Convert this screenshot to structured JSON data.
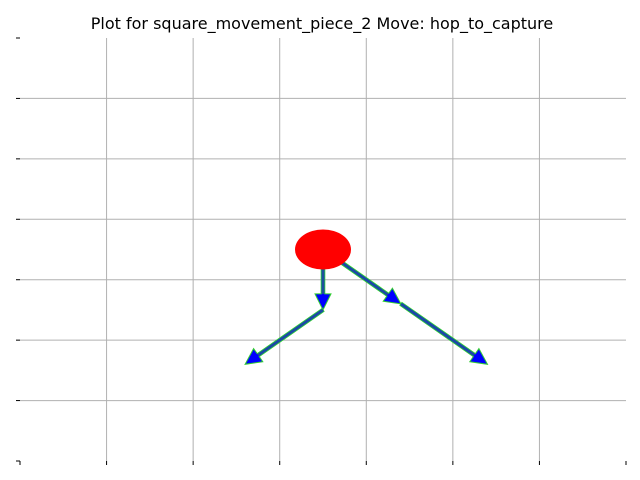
{
  "title": "Plot for  square_movement_piece_2 Move: hop_to_capture",
  "grid": true,
  "colors": {
    "grid": "#b0b0b0",
    "axes": "#000000",
    "piece": "#ff0000",
    "arrow_fill": "#0000ff",
    "arrow_edge": "#32cd32",
    "shaft": "#1f4e9e",
    "background": "#ffffff"
  },
  "chart_data": {
    "type": "scatter",
    "title": "Plot for  square_movement_piece_2 Move: hop_to_capture",
    "xlabel": "",
    "ylabel": "",
    "xlim": [
      0,
      7
    ],
    "ylim": [
      0,
      7
    ],
    "x_ticks": [
      0,
      1,
      2,
      3,
      4,
      5,
      6,
      7
    ],
    "y_ticks": [
      0,
      1,
      2,
      3,
      4,
      5,
      6,
      7
    ],
    "tick_labels_visible": false,
    "grid": true,
    "piece": {
      "x": 3.5,
      "y": 3.5
    },
    "moves": [
      {
        "from": [
          3.5,
          3.5
        ],
        "to": [
          3.5,
          2.5
        ]
      },
      {
        "from": [
          3.5,
          2.5
        ],
        "to": [
          2.6,
          1.6
        ]
      },
      {
        "from": [
          3.5,
          3.5
        ],
        "to": [
          4.4,
          2.6
        ]
      },
      {
        "from": [
          4.4,
          2.6
        ],
        "to": [
          5.4,
          1.6
        ]
      }
    ]
  }
}
